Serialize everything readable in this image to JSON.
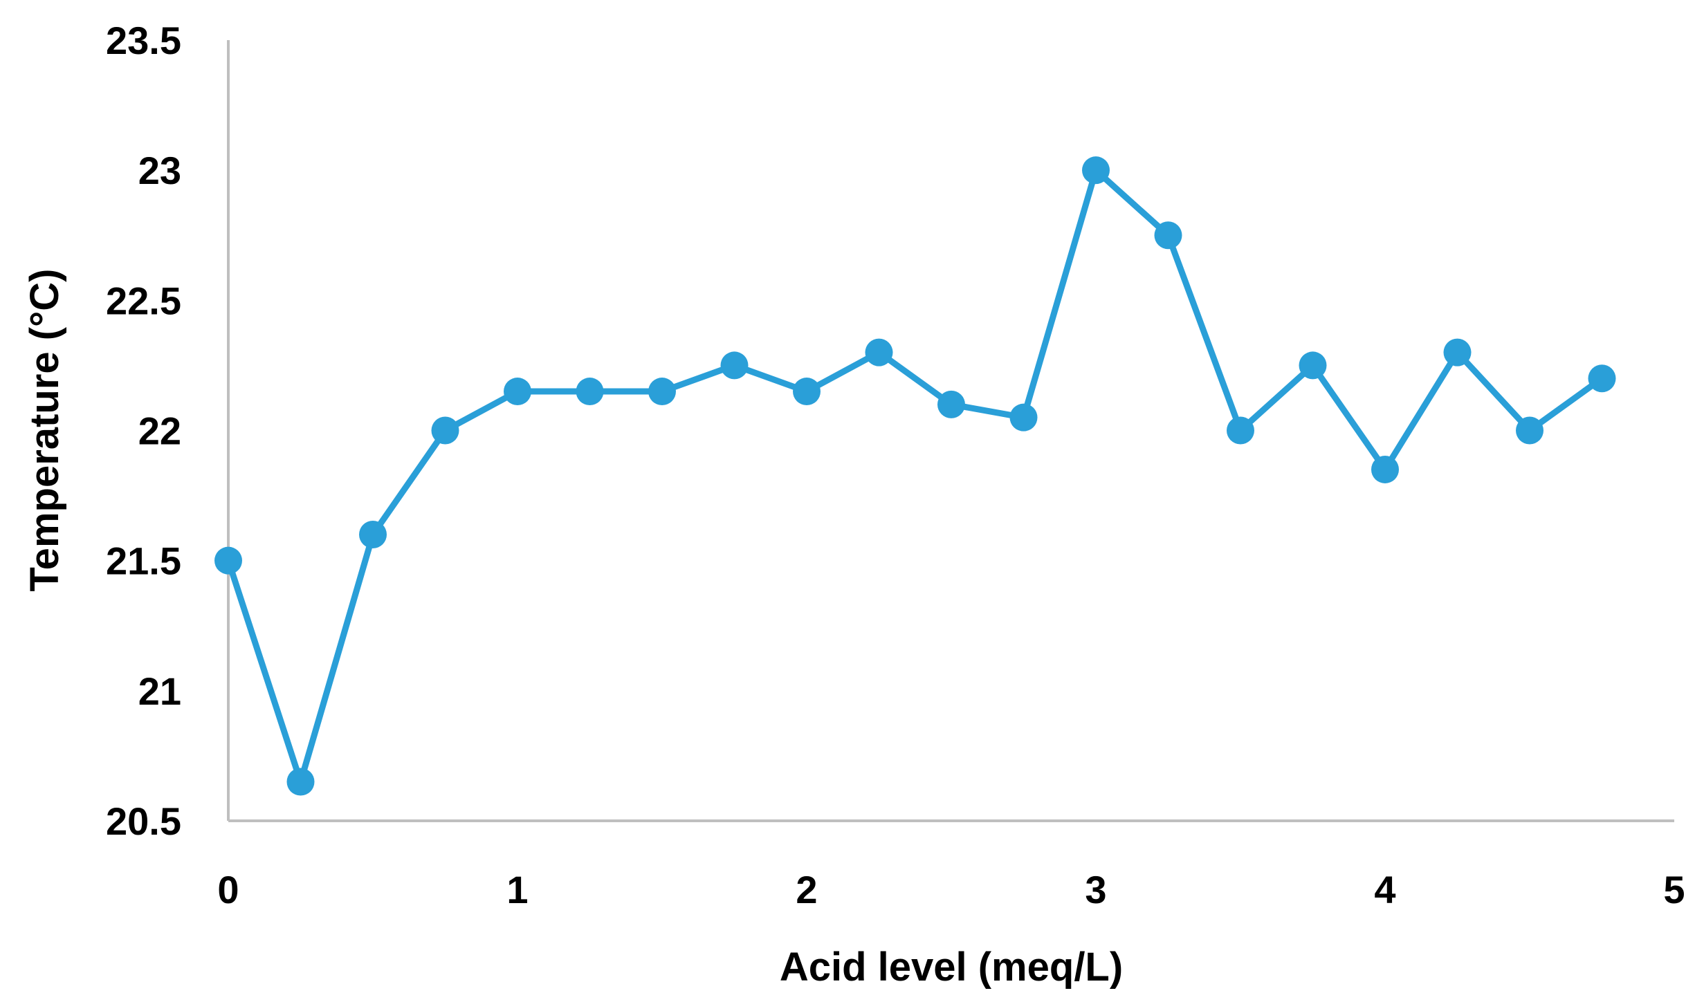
{
  "chart_data": {
    "type": "line",
    "title": "",
    "xlabel": "Acid level (meq/L)",
    "ylabel": "Temperature (°C)",
    "xlim": [
      0,
      5
    ],
    "ylim": [
      20.5,
      23.5
    ],
    "x_ticks": [
      "0",
      "1",
      "2",
      "3",
      "4",
      "5"
    ],
    "y_ticks": [
      "20.5",
      "21",
      "21.5",
      "22",
      "22.5",
      "23",
      "23.5"
    ],
    "grid": false,
    "legend": "none",
    "colors": {
      "series": "#2a9fd8",
      "axis": "#bfbfbf",
      "text": "#000000"
    },
    "series": [
      {
        "x": [
          0,
          0.25,
          0.5,
          0.75,
          1,
          1.25,
          1.5,
          1.75,
          2,
          2.25,
          2.5,
          2.75,
          3,
          3.25,
          3.5,
          3.75,
          4,
          4.25,
          4.5,
          4.75
        ],
        "y": [
          21.5,
          20.65,
          21.6,
          22.0,
          22.15,
          22.15,
          22.15,
          22.25,
          22.15,
          22.3,
          22.1,
          22.05,
          23.0,
          22.75,
          22.0,
          22.25,
          21.85,
          22.3,
          22.0,
          22.2
        ]
      }
    ]
  }
}
